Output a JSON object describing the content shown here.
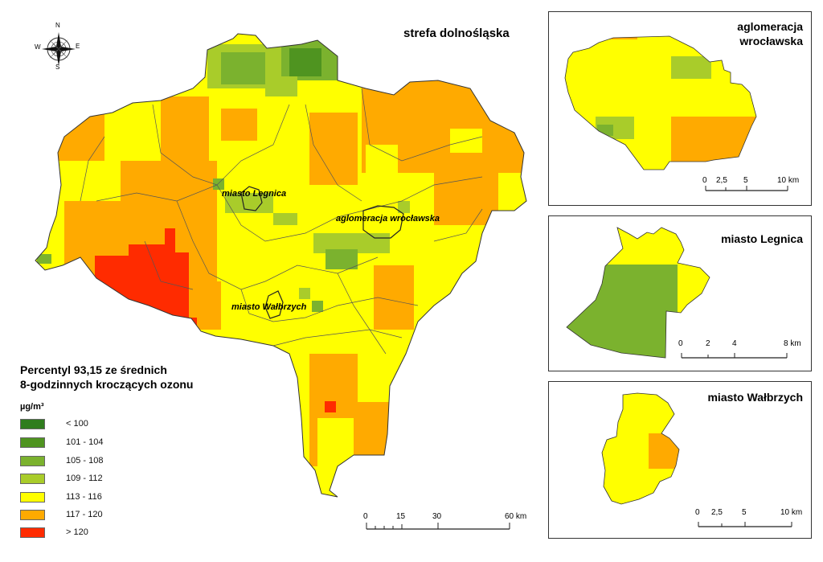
{
  "main": {
    "title": "strefa dolnośląska",
    "city_labels": [
      "miasto Legnica",
      "aglomeracja wrocławska",
      "miasto Wałbrzych"
    ],
    "scale": {
      "ticks": [
        "0",
        "15",
        "30",
        "60 km"
      ]
    }
  },
  "compass": {
    "n": "N",
    "s": "S",
    "e": "E",
    "w": "W"
  },
  "legend": {
    "title_line1": "Percentyl 93,15 ze średnich",
    "title_line2": "8-godzinnych kroczących ozonu",
    "unit": "µg/m³",
    "classes": [
      {
        "label": "< 100",
        "color": "#2f7d1d"
      },
      {
        "label": "101 - 104",
        "color": "#4f9420"
      },
      {
        "label": "105 - 108",
        "color": "#7bb22e"
      },
      {
        "label": "109 - 112",
        "color": "#a9cc2a"
      },
      {
        "label": "113 - 116",
        "color": "#ffff00"
      },
      {
        "label": "117 - 120",
        "color": "#ffaa00"
      },
      {
        "label": "> 120",
        "color": "#ff2b00"
      }
    ]
  },
  "insets": {
    "wroclaw": {
      "title_line1": "aglomeracja",
      "title_line2": "wrocławska",
      "ticks": [
        "0",
        "2,5",
        "5",
        "10 km"
      ]
    },
    "legnica": {
      "title": "miasto Legnica",
      "ticks": [
        "0",
        "2",
        "4",
        "8 km"
      ]
    },
    "walbrzych": {
      "title": "miasto Wałbrzych",
      "ticks": [
        "0",
        "2,5",
        "5",
        "10 km"
      ]
    }
  }
}
